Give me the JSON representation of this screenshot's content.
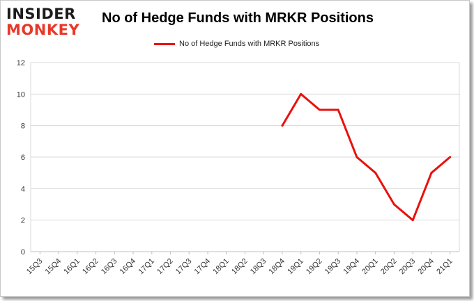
{
  "logo": {
    "line1": "INSIDER",
    "line2": "MONKEY"
  },
  "chart_data": {
    "type": "line",
    "title": "No of Hedge Funds with MRKR Positions",
    "xlabel": "",
    "ylabel": "",
    "categories": [
      "15Q3",
      "15Q4",
      "16Q1",
      "16Q2",
      "16Q3",
      "16Q4",
      "17Q1",
      "17Q2",
      "17Q3",
      "17Q4",
      "18Q1",
      "18Q2",
      "18Q3",
      "18Q4",
      "19Q1",
      "19Q2",
      "19Q3",
      "19Q4",
      "20Q1",
      "20Q2",
      "20Q3",
      "20Q4",
      "21Q1"
    ],
    "series": [
      {
        "name": "No of Hedge Funds with MRKR Positions",
        "color": "#e8120c",
        "values": [
          null,
          null,
          null,
          null,
          null,
          null,
          null,
          null,
          null,
          null,
          null,
          null,
          null,
          8,
          10,
          9,
          9,
          6,
          5,
          3,
          2,
          5,
          6
        ]
      }
    ],
    "ylim": [
      0,
      12
    ],
    "yticks": [
      0,
      2,
      4,
      6,
      8,
      10,
      12
    ],
    "grid": true,
    "legend_position": "top-center"
  }
}
